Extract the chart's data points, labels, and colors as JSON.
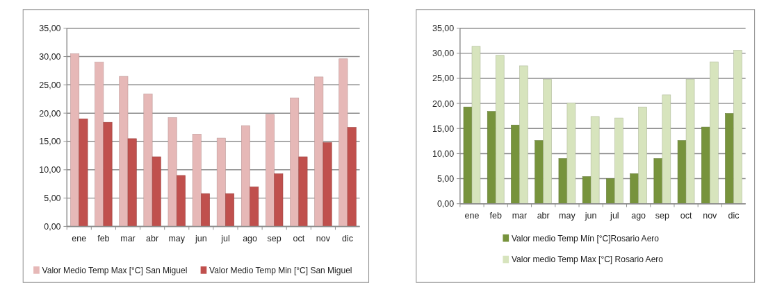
{
  "chart_data": [
    {
      "type": "bar",
      "categories": [
        "ene",
        "feb",
        "mar",
        "abr",
        "may",
        "jun",
        "jul",
        "ago",
        "sep",
        "oct",
        "nov",
        "dic"
      ],
      "series": [
        {
          "name": "Valor Medio Temp  Max [°C] San Miguel",
          "color": "#e6b8b7",
          "values": [
            30.5,
            29.0,
            26.5,
            23.4,
            19.2,
            16.3,
            15.6,
            17.8,
            19.8,
            22.7,
            26.4,
            29.6
          ]
        },
        {
          "name": "Valor Medio Temp Min [°C] San Miguel",
          "color": "#c0504d",
          "values": [
            19.0,
            18.4,
            15.5,
            12.3,
            9.0,
            5.8,
            5.8,
            7.0,
            9.3,
            12.3,
            14.8,
            17.5
          ]
        }
      ],
      "ylim": [
        0,
        35
      ],
      "yticks": [
        {
          "value": 0,
          "label": "0,00"
        },
        {
          "value": 5,
          "label": "5,00"
        },
        {
          "value": 10,
          "label": "10,00"
        },
        {
          "value": 15,
          "label": "15,00"
        },
        {
          "value": 20,
          "label": "20,00"
        },
        {
          "value": 25,
          "label": "25,00"
        },
        {
          "value": 30,
          "label": "30,00"
        },
        {
          "value": 35,
          "label": "35,00"
        }
      ],
      "grid": "y",
      "legend": "bottom"
    },
    {
      "type": "bar",
      "categories": [
        "ene",
        "feb",
        "mar",
        "abr",
        "may",
        "jun",
        "jul",
        "ago",
        "sep",
        "oct",
        "nov",
        "dic"
      ],
      "series": [
        {
          "name": "Valor medio Temp Mín [°C]Rosario Aero",
          "color": "#77933c",
          "values": [
            19.3,
            18.4,
            15.7,
            12.6,
            9.0,
            5.4,
            5.0,
            6.0,
            9.0,
            12.6,
            15.3,
            18.0
          ]
        },
        {
          "name": "Valor medio Temp Max [°C] Rosario Aero",
          "color": "#d7e4bd",
          "values": [
            31.4,
            29.6,
            27.5,
            24.8,
            20.1,
            17.4,
            17.1,
            19.3,
            21.7,
            24.8,
            28.3,
            30.6
          ]
        }
      ],
      "ylim": [
        0,
        35
      ],
      "yticks": [
        {
          "value": 0,
          "label": "0,00"
        },
        {
          "value": 5,
          "label": "5,00"
        },
        {
          "value": 10,
          "label": "10,00"
        },
        {
          "value": 15,
          "label": "15,00"
        },
        {
          "value": 20,
          "label": "20,00"
        },
        {
          "value": 25,
          "label": "25,00"
        },
        {
          "value": 30,
          "label": "30,00"
        },
        {
          "value": 35,
          "label": "35,00"
        }
      ],
      "grid": "y",
      "legend": "bottom"
    }
  ]
}
